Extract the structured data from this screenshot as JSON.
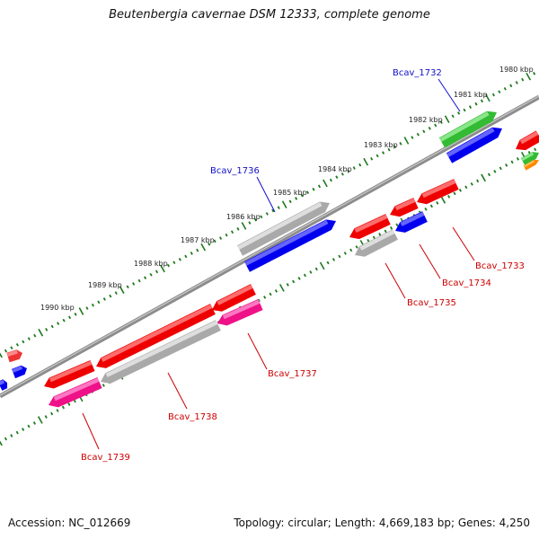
{
  "title": "Beutenbergia cavernae DSM 12333, complete genome",
  "footer": {
    "accession": "Accession: NC_012669",
    "summary": "Topology: circular; Length: 4,669,183 bp; Genes: 4,250"
  },
  "colors": {
    "backbone": "#7a7a7a",
    "tick": "#1e7a1e",
    "label_blue": "#1010c8",
    "label_red": "#cc0000"
  },
  "kbp_ticks": [
    "1980 kbp",
    "1981 kbp",
    "1982 kbp",
    "1983 kbp",
    "1984 kbp",
    "1985 kbp",
    "1986 kbp",
    "1987 kbp",
    "1988 kbp",
    "1989 kbp",
    "1990 kbp"
  ],
  "genes": [
    {
      "id": "Bcav_1732",
      "strand": "+",
      "color": "#33bb33",
      "highlight": "#99ee99",
      "labeled": true,
      "label_color": "blue"
    },
    {
      "id": "Bcav_1736",
      "strand": "+",
      "color": "#a9a9a9",
      "highlight": "#e8e8e8",
      "labeled": true,
      "label_color": "blue"
    },
    {
      "id": "blue-plus-1",
      "strand": "+",
      "color": "#0000ee",
      "highlight": "#7777ff",
      "labeled": false
    },
    {
      "id": "blue-plus-2",
      "strand": "+",
      "color": "#0000ee",
      "highlight": "#7777ff",
      "labeled": false
    },
    {
      "id": "Bcav_1733",
      "strand": "-",
      "color": "#ee0000",
      "highlight": "#ff8080",
      "labeled": true,
      "label_color": "red"
    },
    {
      "id": "Bcav_1734",
      "strand": "-",
      "color": "#0000ee",
      "highlight": "#7777ff",
      "labeled": true,
      "label_color": "red"
    },
    {
      "id": "Bcav_1735",
      "strand": "-",
      "color": "#a9a9a9",
      "highlight": "#e8e8e8",
      "labeled": true,
      "label_color": "red"
    },
    {
      "id": "Bcav_1737",
      "strand": "-",
      "color": "#ee1188",
      "highlight": "#ff88cc",
      "labeled": true,
      "label_color": "red"
    },
    {
      "id": "Bcav_1738",
      "strand": "-",
      "color": "#a9a9a9",
      "highlight": "#e8e8e8",
      "labeled": true,
      "label_color": "red"
    },
    {
      "id": "Bcav_1739",
      "strand": "-",
      "color": "#ee1188",
      "highlight": "#ff88cc",
      "labeled": true,
      "label_color": "red"
    }
  ]
}
